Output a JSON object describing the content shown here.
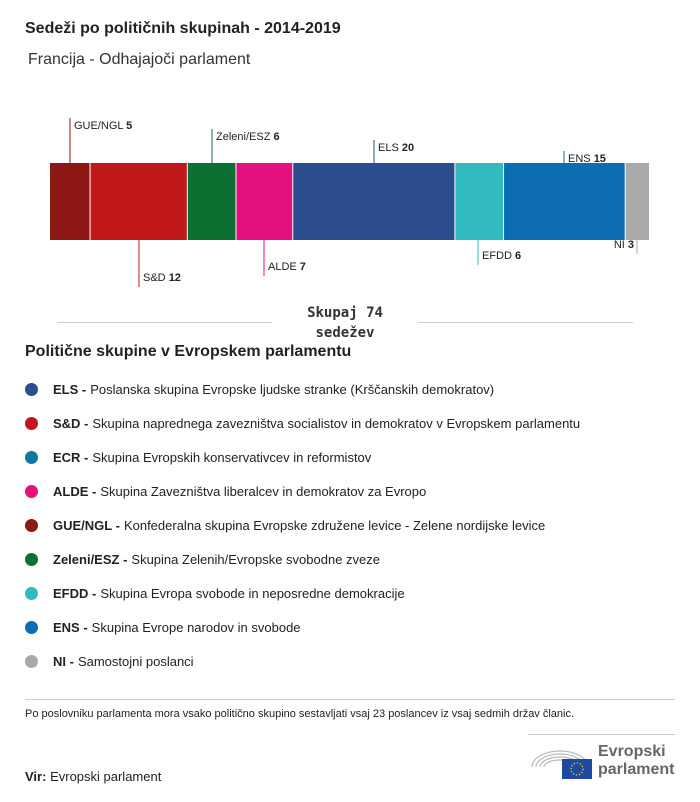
{
  "title": "Sedeži po političnih skupinah - 2014-2019",
  "subtitle": "Francija - Odhajajoči parlament",
  "chart_data": {
    "type": "bar",
    "orientation": "stacked-horizontal",
    "categories": [
      "GUE/NGL",
      "S&D",
      "Zeleni/ESZ",
      "ALDE",
      "ELS",
      "EFDD",
      "ENS",
      "NI"
    ],
    "values": [
      5,
      12,
      6,
      7,
      20,
      6,
      15,
      3
    ],
    "colors": [
      "#8c1714",
      "#c0181a",
      "#0c7033",
      "#e3107f",
      "#2c4d8e",
      "#31bbc1",
      "#0d6db3",
      "#a9a9a9"
    ],
    "total": 74
  },
  "total_label": {
    "line1": "Skupaj 74",
    "line2": "sedežev"
  },
  "legend": {
    "title": "Politične skupine v Evropskem parlamentu",
    "items": [
      {
        "abbr": "ELS -",
        "text": "Poslanska skupina Evropske ljudske stranke (Krščanskih demokratov)",
        "color": "#2c4d8e"
      },
      {
        "abbr": "S&D -",
        "text": "Skupina naprednega zavezništva socialistov in demokratov v Evropskem parlamentu",
        "color": "#c0181a"
      },
      {
        "abbr": "ECR -",
        "text": "Skupina Evropskih konservativcev in reformistov",
        "color": "#0f77a0"
      },
      {
        "abbr": "ALDE -",
        "text": "Skupina Zavezništva liberalcev in demokratov za Evropo",
        "color": "#e3107f"
      },
      {
        "abbr": "GUE/NGL -",
        "text": "Konfederalna skupina Evropske združene levice - Zelene nordijske levice",
        "color": "#8c1714"
      },
      {
        "abbr": "Zeleni/ESZ -",
        "text": "Skupina Zelenih/Evropske svobodne zveze",
        "color": "#0c7033"
      },
      {
        "abbr": "EFDD -",
        "text": "Skupina Evropa svobode in neposredne demokracije",
        "color": "#31bbc1"
      },
      {
        "abbr": "ENS -",
        "text": "Skupina Evrope narodov in svobode",
        "color": "#0d6db3"
      },
      {
        "abbr": "NI -",
        "text": "Samostojni poslanci",
        "color": "#a9a9a9"
      }
    ]
  },
  "note": "Po poslovniku parlamenta mora vsako politično skupino sestavljati vsaj 23 poslancev iz vsaj sedmih držav članic.",
  "source": {
    "label": "Vir:",
    "value": "Evropski parlament"
  },
  "logo": {
    "line1": "Evropski",
    "line2": "parlament"
  }
}
